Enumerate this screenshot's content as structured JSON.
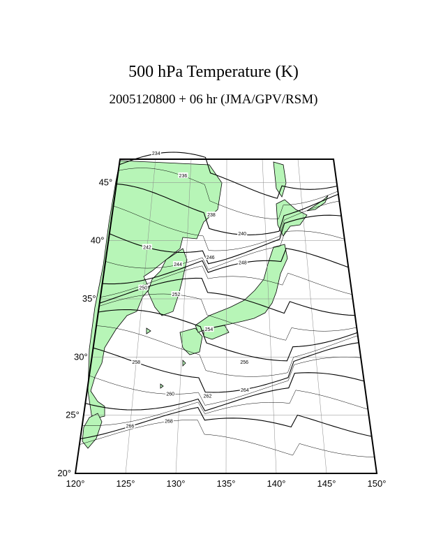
{
  "title": "500 hPa Temperature (K)",
  "subtitle": "2005120800 + 06 hr (JMA/GPV/RSM)",
  "colors": {
    "land": "#b7f5b7",
    "frame": "#000000",
    "grid": "#888888",
    "contour": "#000000"
  },
  "map": {
    "projection": "polar stereographic (regional)",
    "lon_range": [
      120,
      150
    ],
    "lat_range": [
      20,
      47
    ],
    "lon_ticks": [
      "120°",
      "125°",
      "130°",
      "135°",
      "140°",
      "145°",
      "150°"
    ],
    "lat_ticks": [
      "20°",
      "25°",
      "30°",
      "35°",
      "40°",
      "45°"
    ],
    "contour_levels_k": [
      234,
      236,
      238,
      240,
      242,
      244,
      246,
      248,
      250,
      252,
      254,
      256,
      258,
      260,
      262,
      264,
      266,
      268
    ],
    "contour_labels": [
      "234",
      "236",
      "238",
      "240",
      "242",
      "244",
      "246",
      "248",
      "250",
      "252",
      "254",
      "256",
      "258",
      "260",
      "262",
      "264",
      "266",
      "268"
    ]
  }
}
